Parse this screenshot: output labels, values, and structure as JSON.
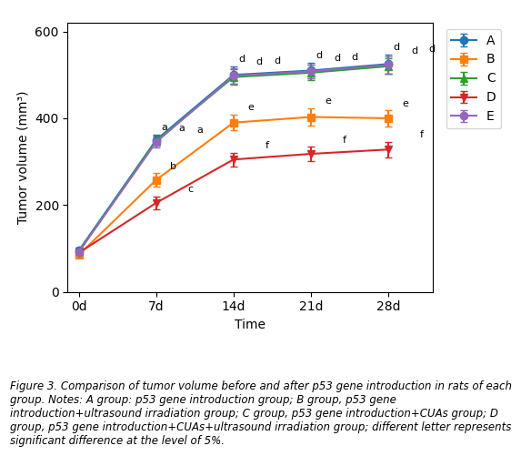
{
  "chart_data": {
    "type": "line",
    "x": [
      0,
      7,
      14,
      21,
      28
    ],
    "xlabel": "Time",
    "ylabel": "Tumor volume (mm³)",
    "xlim": [
      -1,
      32
    ],
    "xticks": [
      {
        "value": 0,
        "label": "0d"
      },
      {
        "value": 7,
        "label": "7d"
      },
      {
        "value": 14,
        "label": "14d"
      },
      {
        "value": 21,
        "label": "21d"
      },
      {
        "value": 28,
        "label": "28d"
      }
    ],
    "ylim": [
      0,
      620
    ],
    "yticks": [
      0,
      200,
      400,
      600
    ],
    "legend": "right",
    "series": [
      {
        "name": "A",
        "marker": "circle",
        "values": [
          95,
          350,
          500,
          510,
          525
        ],
        "yerr": [
          8,
          12,
          20,
          18,
          22
        ]
      },
      {
        "name": "B",
        "marker": "square",
        "values": [
          85,
          258,
          390,
          403,
          400
        ],
        "yerr": [
          7,
          15,
          18,
          20,
          18
        ]
      },
      {
        "name": "C",
        "marker": "triangle_up",
        "values": [
          93,
          348,
          495,
          505,
          520
        ],
        "yerr": [
          8,
          12,
          18,
          18,
          18
        ]
      },
      {
        "name": "D",
        "marker": "triangle_down",
        "values": [
          90,
          205,
          305,
          318,
          328
        ],
        "yerr": [
          7,
          14,
          16,
          16,
          18
        ]
      },
      {
        "name": "E",
        "marker": "circle",
        "values": [
          92,
          345,
          498,
          508,
          523
        ],
        "yerr": [
          8,
          12,
          18,
          16,
          20
        ]
      }
    ],
    "annotations": [
      {
        "series": "A",
        "x": 7,
        "text": "a"
      },
      {
        "series": "A",
        "x": 14,
        "text": "d"
      },
      {
        "series": "A",
        "x": 21,
        "text": "d"
      },
      {
        "series": "A",
        "x": 28,
        "text": "d"
      },
      {
        "series": "B",
        "x": 7,
        "text": "b"
      },
      {
        "series": "B",
        "x": 14,
        "text": "e"
      },
      {
        "series": "B",
        "x": 21,
        "text": "e"
      },
      {
        "series": "B",
        "x": 28,
        "text": "e"
      },
      {
        "series": "C",
        "x": 7,
        "text": "a"
      },
      {
        "series": "C",
        "x": 14,
        "text": "d"
      },
      {
        "series": "C",
        "x": 21,
        "text": "d"
      },
      {
        "series": "C",
        "x": 28,
        "text": "d"
      },
      {
        "series": "D",
        "x": 7,
        "text": "c"
      },
      {
        "series": "D",
        "x": 14,
        "text": "f"
      },
      {
        "series": "D",
        "x": 21,
        "text": "f"
      },
      {
        "series": "D",
        "x": 28,
        "text": "f"
      },
      {
        "series": "E",
        "x": 7,
        "text": "a"
      },
      {
        "series": "E",
        "x": 14,
        "text": "d"
      },
      {
        "series": "E",
        "x": 21,
        "text": "d"
      },
      {
        "series": "E",
        "x": 28,
        "text": "d"
      }
    ],
    "caption": "Figure 3. Comparison of tumor volume before and after p53 gene introduction in rats of each group. Notes: A group: p53 gene introduction group; B group, p53 gene introduction+ultrasound irradiation group; C group, p53 gene introduction+CUAs group; D group, p53 gene introduction+CUAs+ultrasound irradiation group; different letter represents significant difference at the level of 5%."
  }
}
